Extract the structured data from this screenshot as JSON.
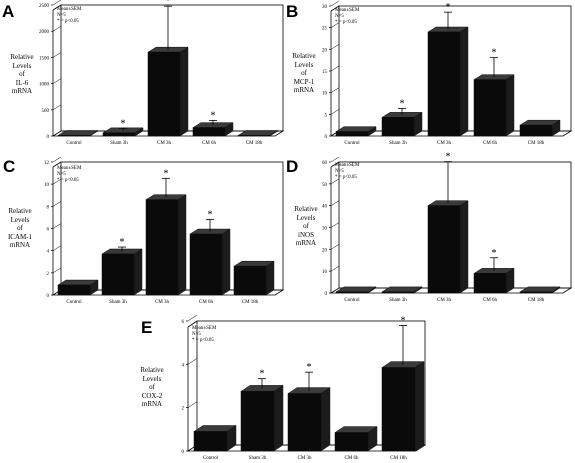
{
  "colors": {
    "bar_front": "#0a0a0a",
    "bar_side": "#1c1c1c",
    "bar_top": "#3a3a3a",
    "axis": "#000000",
    "floor": "#b0b0b0"
  },
  "chart_data": [
    {
      "id": "A",
      "type": "bar",
      "panel_label": "A",
      "ylabel_lines": [
        "Relative",
        "Levels",
        "of",
        "IL-6",
        "mRNA"
      ],
      "legend_lines": [
        "Mean±SEM",
        "N=5",
        "* = p<0.05"
      ],
      "categories": [
        "Control",
        "Sham 3h",
        "CM 3h",
        "CM 6h",
        "CM 18h"
      ],
      "values": [
        0,
        60,
        1600,
        160,
        0
      ],
      "errors": [
        0,
        40,
        830,
        90,
        0
      ],
      "significant": [
        false,
        true,
        true,
        true,
        false
      ],
      "yticks": [
        0,
        500,
        1000,
        1500,
        2000,
        2500
      ],
      "ylim": [
        0,
        2500
      ]
    },
    {
      "id": "B",
      "type": "bar",
      "panel_label": "B",
      "ylabel_lines": [
        "Relative",
        "Levels",
        "of",
        "MCP-1",
        "mRNA"
      ],
      "legend_lines": [
        "Mean±SEM",
        "N=5",
        "* = p<0.05"
      ],
      "categories": [
        "Control",
        "Sham 3h",
        "CM 3h",
        "CM 6h",
        "CM 18h"
      ],
      "values": [
        1,
        4.3,
        24,
        13,
        2.5
      ],
      "errors": [
        0,
        1.5,
        4,
        4.5,
        0
      ],
      "significant": [
        false,
        true,
        true,
        true,
        false
      ],
      "yticks": [
        0,
        5,
        10,
        15,
        20,
        25,
        30
      ],
      "ylim": [
        0,
        30
      ]
    },
    {
      "id": "C",
      "type": "bar",
      "panel_label": "C",
      "ylabel_lines": [
        "Relative",
        "Levels",
        "of",
        "ICAM-1",
        "mRNA"
      ],
      "legend_lines": [
        "Mean±SEM",
        "N=5",
        "* = p<0.05"
      ],
      "categories": [
        "Control",
        "Sham 3h",
        "CM 3h",
        "CM 6h",
        "CM 18h"
      ],
      "values": [
        0.9,
        3.7,
        8.6,
        5.5,
        2.6
      ],
      "errors": [
        0,
        0.4,
        1.7,
        1.1,
        0
      ],
      "significant": [
        false,
        true,
        true,
        true,
        false
      ],
      "yticks": [
        0,
        2,
        4,
        6,
        8,
        10,
        12
      ],
      "ylim": [
        0,
        12
      ]
    },
    {
      "id": "D",
      "type": "bar",
      "panel_label": "D",
      "ylabel_lines": [
        "Relative",
        "Levels",
        "of",
        "iNOS",
        "mRNA"
      ],
      "legend_lines": [
        "Mean±SEM",
        "N=5",
        "* = p<0.05"
      ],
      "categories": [
        "Control",
        "Sham 3h",
        "CM 3h",
        "CM 6h",
        "CM 18h"
      ],
      "values": [
        0.5,
        0.5,
        40,
        9,
        0.5
      ],
      "errors": [
        0,
        0,
        19,
        6,
        0
      ],
      "significant": [
        false,
        false,
        true,
        true,
        false
      ],
      "yticks": [
        0,
        10,
        20,
        30,
        40,
        50,
        60
      ],
      "ylim": [
        0,
        60
      ]
    },
    {
      "id": "E",
      "type": "bar",
      "panel_label": "E",
      "ylabel_lines": [
        "Relative",
        "Levels",
        "of",
        "COX-2",
        "mRNA"
      ],
      "legend_lines": [
        "Mean±SEM",
        "N=5",
        "* = p<0.05"
      ],
      "categories": [
        "Control",
        "Sham 3h",
        "CM 3h",
        "CM 6h",
        "CM 18h"
      ],
      "values": [
        0.9,
        2.75,
        2.65,
        0.85,
        3.85
      ],
      "errors": [
        0,
        0.45,
        0.85,
        0,
        1.8
      ],
      "significant": [
        false,
        true,
        true,
        false,
        true
      ],
      "yticks": [
        0,
        2,
        4,
        6
      ],
      "ylim": [
        0,
        6
      ]
    }
  ]
}
